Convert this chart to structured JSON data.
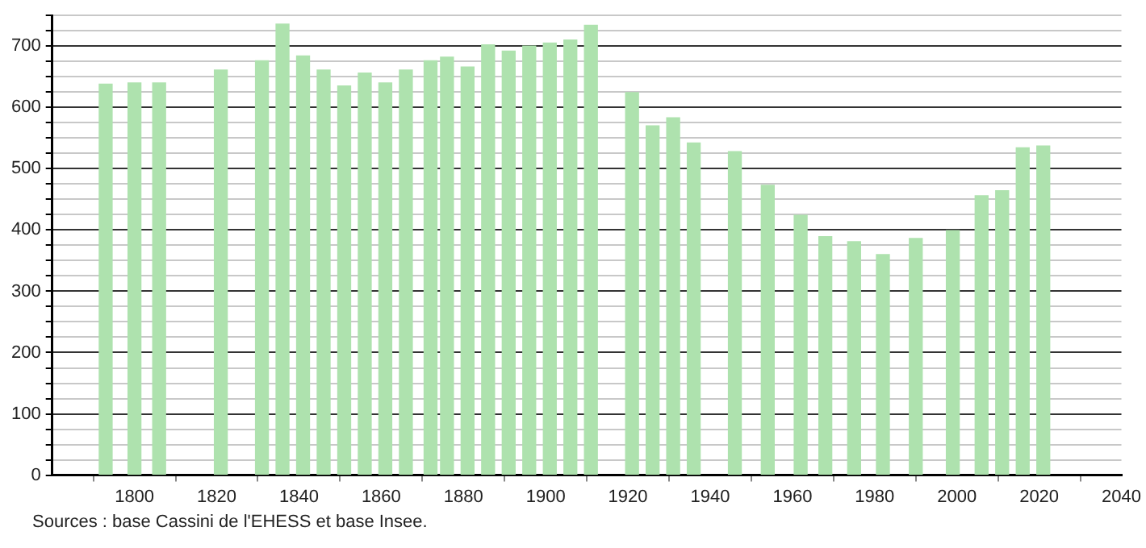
{
  "chart_data": {
    "type": "bar",
    "x": [
      1793,
      1800,
      1806,
      1821,
      1831,
      1836,
      1841,
      1846,
      1851,
      1856,
      1861,
      1866,
      1872,
      1876,
      1881,
      1886,
      1891,
      1896,
      1901,
      1906,
      1911,
      1921,
      1926,
      1931,
      1936,
      1946,
      1954,
      1962,
      1968,
      1975,
      1982,
      1990,
      1999,
      2006,
      2011,
      2016,
      2021
    ],
    "values": [
      638,
      640,
      640,
      661,
      676,
      736,
      684,
      661,
      635,
      656,
      640,
      661,
      676,
      682,
      666,
      702,
      692,
      700,
      705,
      710,
      734,
      624,
      570,
      583,
      542,
      528,
      473,
      424,
      389,
      381,
      360,
      386,
      399,
      456,
      464,
      534,
      537
    ],
    "color": "#aee2ae",
    "xlim": [
      1780,
      2040
    ],
    "xticks": [
      1800,
      1820,
      1840,
      1860,
      1880,
      1900,
      1920,
      1940,
      1960,
      1980,
      2000,
      2020,
      2040
    ],
    "ylim": [
      0,
      750
    ],
    "yticks": [
      0,
      {
        "value": 25,
        "label": null
      },
      {
        "value": 50,
        "label": null
      },
      {
        "value": 75,
        "label": null
      },
      100,
      {
        "value": 125,
        "label": null
      },
      {
        "value": 150,
        "label": null
      },
      {
        "value": 175,
        "label": null
      },
      200,
      {
        "value": 225,
        "label": null
      },
      {
        "value": 250,
        "label": null
      },
      {
        "value": 275,
        "label": null
      },
      300,
      {
        "value": 325,
        "label": null
      },
      {
        "value": 350,
        "label": null
      },
      {
        "value": 375,
        "label": null
      },
      400,
      {
        "value": 425,
        "label": null
      },
      {
        "value": 450,
        "label": null
      },
      {
        "value": 475,
        "label": null
      },
      500,
      {
        "value": 525,
        "label": null
      },
      {
        "value": 550,
        "label": null
      },
      {
        "value": 575,
        "label": null
      },
      600,
      {
        "value": 625,
        "label": null
      },
      {
        "value": 650,
        "label": null
      },
      {
        "value": 675,
        "label": null
      },
      700,
      {
        "value": 725,
        "label": null
      },
      {
        "value": 750,
        "label": null
      }
    ],
    "grid": "y",
    "legend": false,
    "annotations": [
      "Sources : base Cassini de l'EHESS et base Insee."
    ]
  }
}
